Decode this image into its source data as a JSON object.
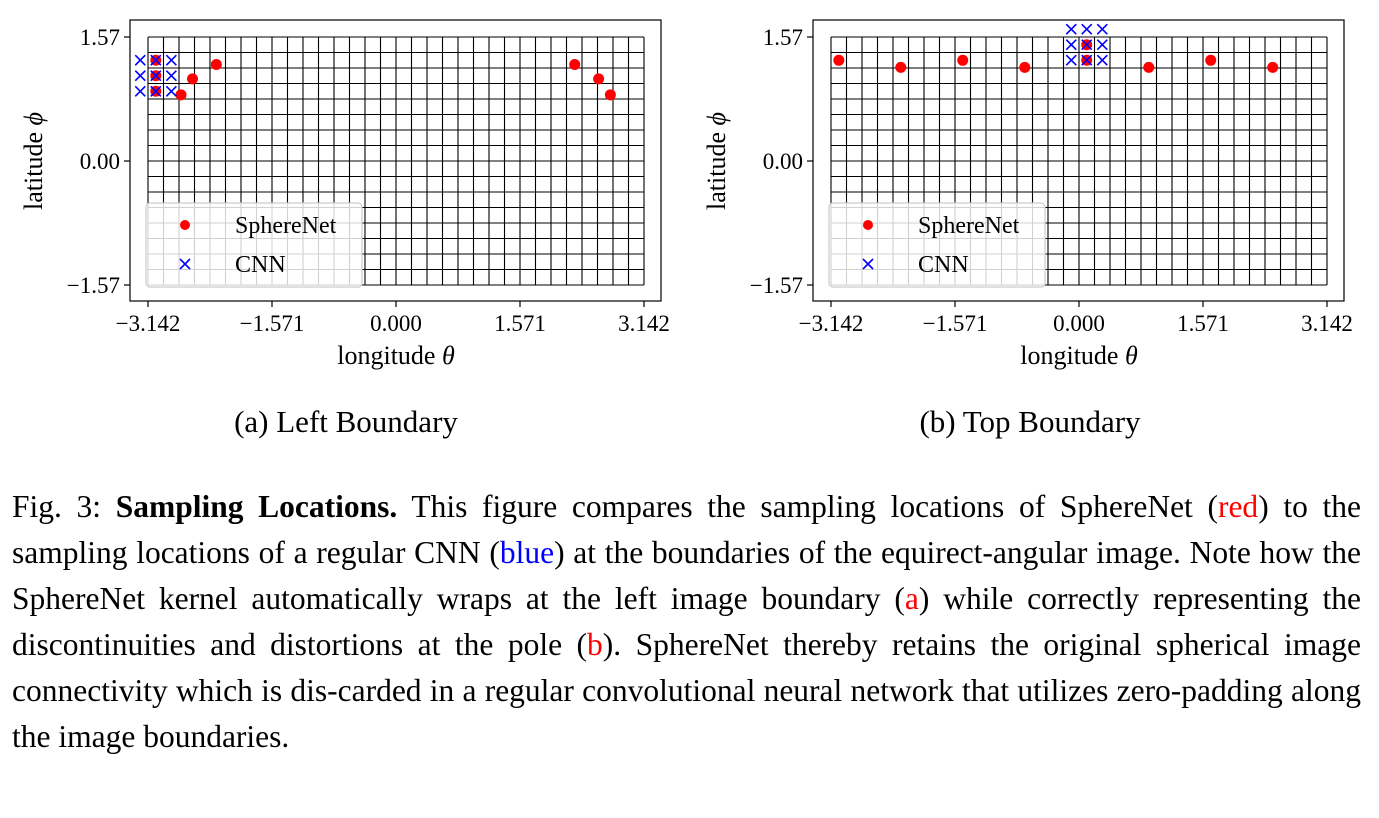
{
  "chart_data": [
    {
      "type": "scatter",
      "xlabel": "longitude",
      "xsym": "θ",
      "ylabel": "latitude",
      "ysym": "ϕ",
      "xlim": [
        -3.142,
        3.142
      ],
      "ylim": [
        -1.57,
        1.57
      ],
      "xticks": [
        "−3.142",
        "−1.571",
        "0.000",
        "1.571",
        "3.142"
      ],
      "yticks": [
        "1.57",
        "0.00",
        "−1.57"
      ],
      "grid": true,
      "grid_cols": 32,
      "grid_rows": 16,
      "legend_position": "lower-left",
      "series": [
        {
          "name": "SphereNet",
          "marker": "dot",
          "color": "#ff0000",
          "points": [
            [
              -3.043,
              1.276
            ],
            [
              -3.043,
              1.08
            ],
            [
              -3.043,
              0.883
            ],
            [
              -2.724,
              0.838
            ],
            [
              -2.578,
              1.04
            ],
            [
              -2.276,
              1.222
            ],
            [
              2.264,
              1.222
            ],
            [
              2.567,
              1.04
            ],
            [
              2.716,
              0.838
            ]
          ]
        },
        {
          "name": "CNN",
          "marker": "x",
          "color": "#0000ff",
          "points": [
            [
              -3.24,
              1.276
            ],
            [
              -3.043,
              1.276
            ],
            [
              -2.846,
              1.276
            ],
            [
              -3.24,
              1.08
            ],
            [
              -3.043,
              1.08
            ],
            [
              -2.846,
              1.08
            ],
            [
              -3.24,
              0.883
            ],
            [
              -3.043,
              0.883
            ],
            [
              -2.846,
              0.883
            ]
          ]
        }
      ]
    },
    {
      "type": "scatter",
      "xlabel": "longitude",
      "xsym": "θ",
      "ylabel": "latitude",
      "ysym": "ϕ",
      "xlim": [
        -3.142,
        3.142
      ],
      "ylim": [
        -1.57,
        1.57
      ],
      "xticks": [
        "−3.142",
        "−1.571",
        "0.000",
        "1.571",
        "3.142"
      ],
      "yticks": [
        "1.57",
        "0.00",
        "−1.57"
      ],
      "grid": true,
      "grid_cols": 32,
      "grid_rows": 16,
      "legend_position": "lower-left",
      "series": [
        {
          "name": "SphereNet",
          "marker": "dot",
          "color": "#ff0000",
          "points": [
            [
              0.098,
              1.472
            ],
            [
              0.098,
              1.276
            ],
            [
              -3.043,
              1.275
            ],
            [
              -2.258,
              1.186
            ],
            [
              -1.473,
              1.275
            ],
            [
              -0.687,
              1.186
            ],
            [
              0.884,
              1.186
            ],
            [
              1.669,
              1.275
            ],
            [
              2.454,
              1.186
            ]
          ]
        },
        {
          "name": "CNN",
          "marker": "x",
          "color": "#0000ff",
          "points": [
            [
              -0.098,
              1.669
            ],
            [
              0.098,
              1.669
            ],
            [
              0.295,
              1.669
            ],
            [
              -0.098,
              1.472
            ],
            [
              0.098,
              1.472
            ],
            [
              0.295,
              1.472
            ],
            [
              -0.098,
              1.276
            ],
            [
              0.098,
              1.276
            ],
            [
              0.295,
              1.276
            ]
          ]
        }
      ]
    }
  ],
  "subcaptions": [
    "(a) Left Boundary",
    "(b) Top Boundary"
  ],
  "caption": {
    "fig": "Fig. 3: ",
    "label": "Sampling Locations.",
    "t1": " This figure compares the sampling locations of SphereNet (",
    "red": "red",
    "t2": ") to the sampling locations of a regular CNN (",
    "blue": "blue",
    "t3": ") at the boundaries of the equirect-angular image. Note how the SphereNet kernel automatically wraps at the left image boundary (",
    "a": "a",
    "t4": ") while correctly representing the discontinuities and distortions at the pole (",
    "b": "b",
    "t5": "). SphereNet thereby retains the original spherical image connectivity which is dis-carded in a regular convolutional neural network that utilizes zero-padding along the image boundaries."
  }
}
